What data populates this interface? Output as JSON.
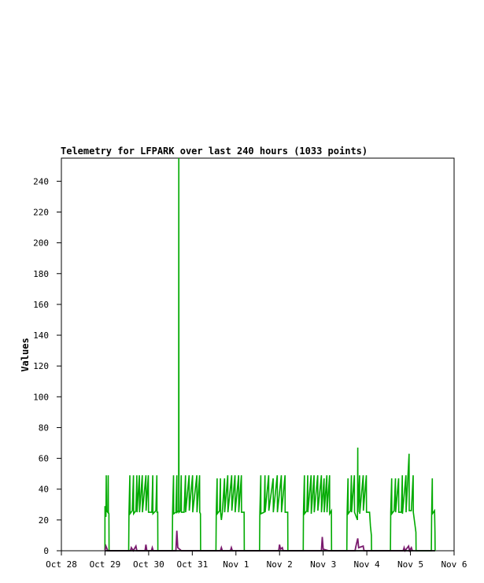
{
  "chart_data": {
    "type": "line",
    "title": "Telemetry for LFPARK over last 240 hours (1033 points)",
    "ylabel": "Values",
    "xlabel": "",
    "ylim": [
      0,
      255
    ],
    "xlim": [
      "2008-10-28T00:00",
      "2008-11-06T00:00"
    ],
    "x_ticks": [
      "Oct 28",
      "Oct 29",
      "Oct 30",
      "Oct 31",
      "Nov 1",
      "Nov 2",
      "Nov 3",
      "Nov 4",
      "Nov 5",
      "Nov 6"
    ],
    "y_ticks": [
      0,
      20,
      40,
      60,
      80,
      100,
      120,
      140,
      160,
      180,
      200,
      220,
      240
    ],
    "grid": false,
    "series": [
      {
        "color": "#00aa00",
        "points": [
          [
            "2008-10-28T23:55",
            0
          ],
          [
            "2008-10-29T00:00",
            29
          ],
          [
            "2008-10-29T00:15",
            27
          ],
          [
            "2008-10-29T00:30",
            22
          ],
          [
            "2008-10-29T00:40",
            49
          ],
          [
            "2008-10-29T00:45",
            26
          ],
          [
            "2008-10-29T01:30",
            25
          ],
          [
            "2008-10-29T01:45",
            49
          ],
          [
            "2008-10-29T01:50",
            25
          ],
          [
            "2008-10-29T02:10",
            24
          ],
          [
            "2008-10-29T02:15",
            0
          ],
          [
            "2008-10-29T13:00",
            0
          ],
          [
            "2008-10-29T13:10",
            25
          ],
          [
            "2008-10-29T13:40",
            49
          ],
          [
            "2008-10-29T13:45",
            24
          ],
          [
            "2008-10-29T15:00",
            26
          ],
          [
            "2008-10-29T15:40",
            49
          ],
          [
            "2008-10-29T15:45",
            24
          ],
          [
            "2008-10-29T17:00",
            26
          ],
          [
            "2008-10-29T17:30",
            49
          ],
          [
            "2008-10-29T17:35",
            25
          ],
          [
            "2008-10-29T18:55",
            49
          ],
          [
            "2008-10-29T19:00",
            25
          ],
          [
            "2008-10-29T20:30",
            49
          ],
          [
            "2008-10-29T20:35",
            25
          ],
          [
            "2008-10-29T22:30",
            49
          ],
          [
            "2008-10-29T22:35",
            26
          ],
          [
            "2008-10-29T23:50",
            49
          ],
          [
            "2008-10-29T23:55",
            25
          ],
          [
            "2008-10-30T01:45",
            25
          ],
          [
            "2008-10-30T02:15",
            49
          ],
          [
            "2008-10-30T02:20",
            24
          ],
          [
            "2008-10-30T04:00",
            26
          ],
          [
            "2008-10-30T04:30",
            49
          ],
          [
            "2008-10-30T04:35",
            25
          ],
          [
            "2008-10-30T05:00",
            25
          ],
          [
            "2008-10-30T05:05",
            0
          ],
          [
            "2008-10-30T13:00",
            0
          ],
          [
            "2008-10-30T13:10",
            25
          ],
          [
            "2008-10-30T13:40",
            49
          ],
          [
            "2008-10-30T13:45",
            24
          ],
          [
            "2008-10-30T15:00",
            25
          ],
          [
            "2008-10-30T15:30",
            49
          ],
          [
            "2008-10-30T15:35",
            25
          ],
          [
            "2008-10-30T16:30",
            26
          ],
          [
            "2008-10-30T16:35",
            255
          ],
          [
            "2008-10-30T16:40",
            25
          ],
          [
            "2008-10-30T17:30",
            26
          ],
          [
            "2008-10-30T17:55",
            49
          ],
          [
            "2008-10-30T18:00",
            25
          ],
          [
            "2008-10-30T19:30",
            25
          ],
          [
            "2008-10-30T20:15",
            49
          ],
          [
            "2008-10-30T20:20",
            25
          ],
          [
            "2008-10-30T22:15",
            49
          ],
          [
            "2008-10-30T22:20",
            26
          ],
          [
            "2008-10-31T00:10",
            49
          ],
          [
            "2008-10-31T00:15",
            25
          ],
          [
            "2008-10-31T02:30",
            49
          ],
          [
            "2008-10-31T02:35",
            25
          ],
          [
            "2008-10-31T04:00",
            49
          ],
          [
            "2008-10-31T04:05",
            25
          ],
          [
            "2008-10-31T04:30",
            24
          ],
          [
            "2008-10-31T04:35",
            0
          ],
          [
            "2008-10-31T13:00",
            0
          ],
          [
            "2008-10-31T13:10",
            25
          ],
          [
            "2008-10-31T13:40",
            47
          ],
          [
            "2008-10-31T13:45",
            24
          ],
          [
            "2008-10-31T15:00",
            26
          ],
          [
            "2008-10-31T15:30",
            47
          ],
          [
            "2008-10-31T15:35",
            25
          ],
          [
            "2008-10-31T16:00",
            20
          ],
          [
            "2008-10-31T16:30",
            25
          ],
          [
            "2008-10-31T17:45",
            47
          ],
          [
            "2008-10-31T17:50",
            25
          ],
          [
            "2008-10-31T19:30",
            49
          ],
          [
            "2008-10-31T19:35",
            25
          ],
          [
            "2008-10-31T21:40",
            49
          ],
          [
            "2008-10-31T21:45",
            26
          ],
          [
            "2008-10-31T23:30",
            49
          ],
          [
            "2008-10-31T23:35",
            25
          ],
          [
            "2008-11-01T01:30",
            49
          ],
          [
            "2008-11-01T01:35",
            25
          ],
          [
            "2008-11-01T03:00",
            49
          ],
          [
            "2008-11-01T03:05",
            25
          ],
          [
            "2008-11-01T04:30",
            25
          ],
          [
            "2008-11-01T04:35",
            0
          ],
          [
            "2008-11-01T13:00",
            0
          ],
          [
            "2008-11-01T13:10",
            25
          ],
          [
            "2008-11-01T13:40",
            49
          ],
          [
            "2008-11-01T13:45",
            24
          ],
          [
            "2008-11-01T15:30",
            25
          ],
          [
            "2008-11-01T16:00",
            49
          ],
          [
            "2008-11-01T16:05",
            25
          ],
          [
            "2008-11-01T18:00",
            49
          ],
          [
            "2008-11-01T18:05",
            26
          ],
          [
            "2008-11-01T20:30",
            47
          ],
          [
            "2008-11-01T20:35",
            25
          ],
          [
            "2008-11-01T22:45",
            49
          ],
          [
            "2008-11-01T22:50",
            25
          ],
          [
            "2008-11-02T01:00",
            49
          ],
          [
            "2008-11-02T01:05",
            25
          ],
          [
            "2008-11-02T03:00",
            49
          ],
          [
            "2008-11-02T03:05",
            25
          ],
          [
            "2008-11-02T04:30",
            25
          ],
          [
            "2008-11-02T04:35",
            0
          ],
          [
            "2008-11-02T13:00",
            0
          ],
          [
            "2008-11-02T13:10",
            25
          ],
          [
            "2008-11-02T13:40",
            49
          ],
          [
            "2008-11-02T13:45",
            24
          ],
          [
            "2008-11-02T15:00",
            26
          ],
          [
            "2008-11-02T15:30",
            49
          ],
          [
            "2008-11-02T15:35",
            25
          ],
          [
            "2008-11-02T17:20",
            49
          ],
          [
            "2008-11-02T17:25",
            24
          ],
          [
            "2008-11-02T19:00",
            49
          ],
          [
            "2008-11-02T19:05",
            25
          ],
          [
            "2008-11-02T21:00",
            49
          ],
          [
            "2008-11-02T21:05",
            26
          ],
          [
            "2008-11-02T23:00",
            49
          ],
          [
            "2008-11-02T23:05",
            25
          ],
          [
            "2008-11-03T00:30",
            47
          ],
          [
            "2008-11-03T00:35",
            25
          ],
          [
            "2008-11-03T02:00",
            49
          ],
          [
            "2008-11-03T02:05",
            25
          ],
          [
            "2008-11-03T03:30",
            49
          ],
          [
            "2008-11-03T03:35",
            24
          ],
          [
            "2008-11-03T04:30",
            26
          ],
          [
            "2008-11-03T04:35",
            0
          ],
          [
            "2008-11-03T13:00",
            0
          ],
          [
            "2008-11-03T13:10",
            25
          ],
          [
            "2008-11-03T13:40",
            47
          ],
          [
            "2008-11-03T13:45",
            24
          ],
          [
            "2008-11-03T15:00",
            26
          ],
          [
            "2008-11-03T15:30",
            49
          ],
          [
            "2008-11-03T15:35",
            25
          ],
          [
            "2008-11-03T17:10",
            49
          ],
          [
            "2008-11-03T17:15",
            25
          ],
          [
            "2008-11-03T18:50",
            20
          ],
          [
            "2008-11-03T19:00",
            67
          ],
          [
            "2008-11-03T19:05",
            25
          ],
          [
            "2008-11-03T20:00",
            49
          ],
          [
            "2008-11-03T20:05",
            24
          ],
          [
            "2008-11-03T22:00",
            49
          ],
          [
            "2008-11-03T22:05",
            26
          ],
          [
            "2008-11-03T23:45",
            49
          ],
          [
            "2008-11-03T23:50",
            25
          ],
          [
            "2008-11-04T01:30",
            25
          ],
          [
            "2008-11-04T02:00",
            16
          ],
          [
            "2008-11-04T02:30",
            10
          ],
          [
            "2008-11-04T02:35",
            0
          ],
          [
            "2008-11-04T13:00",
            0
          ],
          [
            "2008-11-04T13:10",
            25
          ],
          [
            "2008-11-04T13:40",
            47
          ],
          [
            "2008-11-04T13:45",
            24
          ],
          [
            "2008-11-04T15:00",
            26
          ],
          [
            "2008-11-04T15:45",
            47
          ],
          [
            "2008-11-04T15:50",
            25
          ],
          [
            "2008-11-04T17:30",
            47
          ],
          [
            "2008-11-04T17:35",
            25
          ],
          [
            "2008-11-04T19:00",
            25
          ],
          [
            "2008-11-04T19:30",
            49
          ],
          [
            "2008-11-04T19:35",
            24
          ],
          [
            "2008-11-04T21:30",
            49
          ],
          [
            "2008-11-04T21:35",
            25
          ],
          [
            "2008-11-04T23:15",
            63
          ],
          [
            "2008-11-04T23:20",
            26
          ],
          [
            "2008-11-05T00:30",
            26
          ],
          [
            "2008-11-05T01:30",
            49
          ],
          [
            "2008-11-05T01:35",
            25
          ],
          [
            "2008-11-05T03:00",
            12
          ],
          [
            "2008-11-05T03:05",
            0
          ],
          [
            "2008-11-05T11:30",
            0
          ],
          [
            "2008-11-05T11:40",
            25
          ],
          [
            "2008-11-05T12:00",
            47
          ],
          [
            "2008-11-05T12:05",
            24
          ],
          [
            "2008-11-05T13:15",
            26
          ],
          [
            "2008-11-05T13:30",
            12
          ],
          [
            "2008-11-05T13:35",
            0
          ]
        ]
      },
      {
        "color": "#7a1a6e",
        "points": [
          [
            "2008-10-29T00:00",
            0
          ],
          [
            "2008-10-29T00:30",
            3
          ],
          [
            "2008-10-29T00:50",
            2
          ],
          [
            "2008-10-29T01:30",
            0
          ],
          [
            "2008-10-29T14:00",
            0
          ],
          [
            "2008-10-29T14:30",
            2
          ],
          [
            "2008-10-29T15:30",
            0
          ],
          [
            "2008-10-29T17:00",
            3
          ],
          [
            "2008-10-29T17:30",
            0
          ],
          [
            "2008-10-29T22:00",
            0
          ],
          [
            "2008-10-29T22:30",
            4
          ],
          [
            "2008-10-29T23:00",
            0
          ],
          [
            "2008-10-30T01:30",
            0
          ],
          [
            "2008-10-30T02:00",
            2
          ],
          [
            "2008-10-30T02:30",
            0
          ],
          [
            "2008-10-30T15:00",
            0
          ],
          [
            "2008-10-30T15:30",
            13
          ],
          [
            "2008-10-30T16:00",
            2
          ],
          [
            "2008-10-30T17:00",
            1
          ],
          [
            "2008-10-30T18:00",
            0
          ],
          [
            "2008-10-31T15:30",
            0
          ],
          [
            "2008-10-31T16:00",
            2
          ],
          [
            "2008-10-31T16:30",
            0
          ],
          [
            "2008-10-31T21:00",
            0
          ],
          [
            "2008-10-31T21:30",
            2
          ],
          [
            "2008-10-31T22:00",
            0
          ],
          [
            "2008-11-01T23:30",
            0
          ],
          [
            "2008-11-02T00:00",
            4
          ],
          [
            "2008-11-02T00:30",
            1
          ],
          [
            "2008-11-02T01:30",
            2
          ],
          [
            "2008-11-02T02:00",
            0
          ],
          [
            "2008-11-02T23:00",
            0
          ],
          [
            "2008-11-02T23:30",
            9
          ],
          [
            "2008-11-03T00:00",
            1
          ],
          [
            "2008-11-03T03:00",
            0
          ],
          [
            "2008-11-03T17:30",
            0
          ],
          [
            "2008-11-03T18:00",
            3
          ],
          [
            "2008-11-03T19:00",
            8
          ],
          [
            "2008-11-03T19:30",
            2
          ],
          [
            "2008-11-03T22:00",
            3
          ],
          [
            "2008-11-03T22:30",
            0
          ],
          [
            "2008-11-04T20:00",
            0
          ],
          [
            "2008-11-04T20:30",
            2
          ],
          [
            "2008-11-04T21:00",
            0
          ],
          [
            "2008-11-04T23:00",
            3
          ],
          [
            "2008-11-04T23:30",
            0
          ],
          [
            "2008-11-05T00:30",
            2
          ],
          [
            "2008-11-05T01:00",
            0
          ]
        ]
      },
      {
        "color": "#000000",
        "points": [
          [
            "2008-10-29T00:00",
            0
          ],
          [
            "2008-11-05T13:35",
            0
          ]
        ]
      }
    ]
  }
}
